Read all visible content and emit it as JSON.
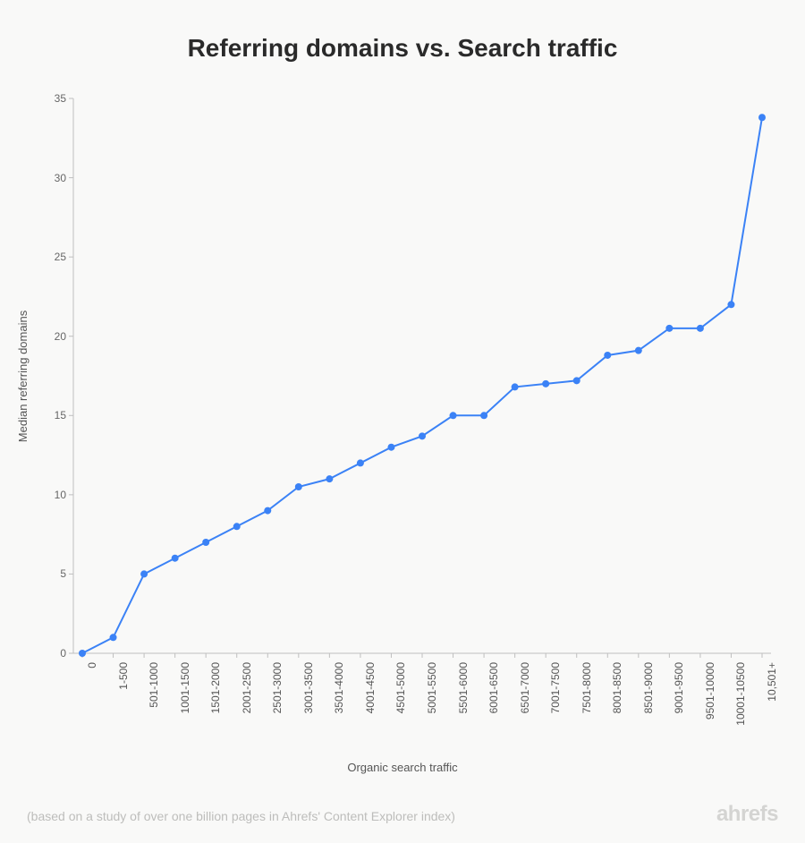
{
  "title": "Referring domains vs. Search traffic",
  "chart": {
    "type": "line",
    "line_color": "#3b82f6",
    "marker_color": "#3b82f6",
    "marker_radius": 4,
    "line_width": 2,
    "background_color": "#f9f9f8",
    "axis_color": "#bfbfbf",
    "ylabel": "Median referring domains",
    "xlabel": "Organic search traffic",
    "ylim": [
      0,
      35
    ],
    "ytick_step": 5,
    "yticks": [
      0,
      5,
      10,
      15,
      20,
      25,
      30,
      35
    ],
    "categories": [
      "0",
      "1-500",
      "501-1000",
      "1001-1500",
      "1501-2000",
      "2001-2500",
      "2501-3000",
      "3001-3500",
      "3501-4000",
      "4001-4500",
      "4501-5000",
      "5001-5500",
      "5501-6000",
      "6001-6500",
      "6501-7000",
      "7001-7500",
      "7501-8000",
      "8001-8500",
      "8501-9000",
      "9001-9500",
      "9501-10000",
      "10001-10500",
      "10,501+"
    ],
    "values": [
      0,
      1,
      5,
      6,
      7,
      8,
      9,
      10.5,
      11,
      12,
      13,
      13.7,
      15,
      15,
      16.8,
      17,
      17.2,
      18.8,
      19.1,
      20.5,
      20.5,
      22,
      33.8
    ],
    "label_fontsize": 13,
    "tick_fontsize": 12,
    "title_fontsize": 28
  },
  "footnote": "(based on a study of over one billion pages in Ahrefs' Content Explorer index)",
  "brand": "ahrefs"
}
